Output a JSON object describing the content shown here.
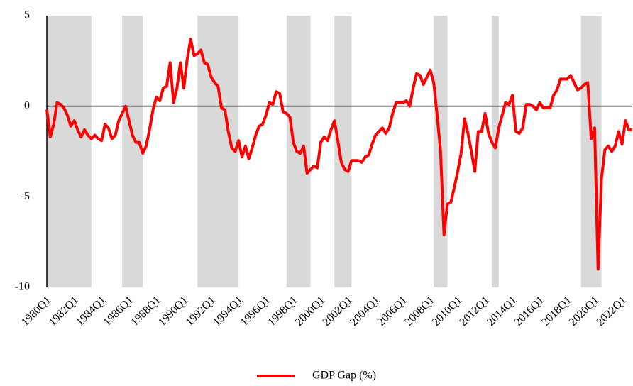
{
  "chart_data": {
    "type": "line",
    "x": [
      1980,
      1980.25,
      1980.5,
      1980.75,
      1981,
      1981.25,
      1981.5,
      1981.75,
      1982,
      1982.25,
      1982.5,
      1982.75,
      1983,
      1983.25,
      1983.5,
      1983.75,
      1984,
      1984.25,
      1984.5,
      1984.75,
      1985,
      1985.25,
      1985.5,
      1985.75,
      1986,
      1986.25,
      1986.5,
      1986.75,
      1987,
      1987.25,
      1987.5,
      1987.75,
      1988,
      1988.25,
      1988.5,
      1988.75,
      1989,
      1989.25,
      1989.5,
      1989.75,
      1990,
      1990.25,
      1990.5,
      1990.75,
      1991,
      1991.25,
      1991.5,
      1991.75,
      1992,
      1992.25,
      1992.5,
      1992.75,
      1993,
      1993.25,
      1993.5,
      1993.75,
      1994,
      1994.25,
      1994.5,
      1994.75,
      1995,
      1995.25,
      1995.5,
      1995.75,
      1996,
      1996.25,
      1996.5,
      1996.75,
      1997,
      1997.25,
      1997.5,
      1997.75,
      1998,
      1998.25,
      1998.5,
      1998.75,
      1999,
      1999.25,
      1999.5,
      1999.75,
      2000,
      2000.25,
      2000.5,
      2000.75,
      2001,
      2001.25,
      2001.5,
      2001.75,
      2002,
      2002.25,
      2002.5,
      2002.75,
      2003,
      2003.25,
      2003.5,
      2003.75,
      2004,
      2004.25,
      2004.5,
      2004.75,
      2005,
      2005.25,
      2005.5,
      2005.75,
      2006,
      2006.25,
      2006.5,
      2006.75,
      2007,
      2007.25,
      2007.5,
      2007.75,
      2008,
      2008.25,
      2008.5,
      2008.75,
      2009,
      2009.25,
      2009.5,
      2009.75,
      2010,
      2010.25,
      2010.5,
      2010.75,
      2011,
      2011.25,
      2011.5,
      2011.75,
      2012,
      2012.25,
      2012.5,
      2012.75,
      2013,
      2013.25,
      2013.5,
      2013.75,
      2014,
      2014.25,
      2014.5,
      2014.75,
      2015,
      2015.25,
      2015.5,
      2015.75,
      2016,
      2016.25,
      2016.5,
      2016.75,
      2017,
      2017.25,
      2017.5,
      2017.75,
      2018,
      2018.25,
      2018.5,
      2018.75,
      2019,
      2019.25,
      2019.5,
      2019.75,
      2020,
      2020.25,
      2020.5,
      2020.75,
      2021,
      2021.25,
      2021.5,
      2021.75,
      2022,
      2022.25,
      2022.5,
      2022.75
    ],
    "series": [
      {
        "name": "GDP Gap (%)",
        "color": "#ff0000",
        "values": [
          -0.2,
          -1.7,
          -1.0,
          0.2,
          0.1,
          -0.1,
          -0.5,
          -1.1,
          -0.8,
          -1.3,
          -1.7,
          -1.3,
          -1.6,
          -1.8,
          -1.6,
          -1.8,
          -1.9,
          -1.0,
          -1.2,
          -1.8,
          -1.6,
          -0.8,
          -0.4,
          0.0,
          -0.8,
          -1.6,
          -2.0,
          -2.0,
          -2.6,
          -2.2,
          -1.3,
          -0.2,
          0.5,
          0.3,
          1.0,
          1.1,
          2.4,
          0.2,
          1.0,
          2.4,
          1.0,
          2.6,
          3.7,
          2.8,
          2.9,
          3.1,
          2.4,
          2.3,
          1.6,
          1.3,
          1.1,
          -0.1,
          -0.2,
          -1.4,
          -2.3,
          -2.5,
          -1.9,
          -2.8,
          -2.2,
          -2.9,
          -2.3,
          -1.6,
          -1.1,
          -1.0,
          -0.5,
          0.2,
          0.1,
          0.8,
          0.7,
          -0.3,
          -0.4,
          -0.6,
          -2.0,
          -2.5,
          -2.6,
          -2.2,
          -3.7,
          -3.5,
          -3.3,
          -3.4,
          -2.0,
          -1.7,
          -1.9,
          -1.3,
          -0.8,
          -1.9,
          -3.1,
          -3.5,
          -3.6,
          -3.0,
          -3.0,
          -3.0,
          -3.1,
          -2.8,
          -2.7,
          -2.1,
          -1.6,
          -1.4,
          -1.2,
          -1.5,
          -1.2,
          -0.4,
          0.2,
          0.2,
          0.2,
          0.3,
          0.0,
          1.0,
          1.8,
          1.7,
          1.2,
          1.6,
          2.0,
          1.3,
          -0.5,
          -2.5,
          -7.1,
          -5.4,
          -5.3,
          -4.5,
          -3.6,
          -2.6,
          -0.7,
          -1.5,
          -2.5,
          -3.6,
          -1.4,
          -1.4,
          -0.4,
          -1.5,
          -2.0,
          -2.3,
          -1.2,
          -0.5,
          0.2,
          0.1,
          0.6,
          -1.4,
          -1.5,
          -1.2,
          0.1,
          0.1,
          0.0,
          -0.2,
          0.2,
          -0.1,
          -0.1,
          -0.1,
          0.6,
          0.9,
          1.5,
          1.5,
          1.5,
          1.7,
          1.3,
          0.9,
          1.0,
          1.2,
          1.3,
          -1.8,
          -1.2,
          -9.0,
          -4.0,
          -2.4,
          -2.2,
          -2.5,
          -2.2,
          -1.4,
          -2.1,
          -0.8,
          -1.3,
          -1.3
        ]
      }
    ],
    "shaded_periods": [
      [
        1980,
        1983.25
      ],
      [
        1985.5,
        1987
      ],
      [
        1991,
        1994
      ],
      [
        1997.5,
        1999.25
      ],
      [
        2001,
        2002.25
      ],
      [
        2008.25,
        2009.25
      ],
      [
        2012.5,
        2013
      ],
      [
        2019,
        2020.5
      ]
    ],
    "shade_color": "#d9d9d9",
    "xlim": [
      1980,
      2022.75
    ],
    "xticks": [
      {
        "value": 1980,
        "label": "1980Q1"
      },
      {
        "value": 1982,
        "label": "1982Q1"
      },
      {
        "value": 1984,
        "label": "1984Q1"
      },
      {
        "value": 1986,
        "label": "1986Q1"
      },
      {
        "value": 1988,
        "label": "1988Q1"
      },
      {
        "value": 1990,
        "label": "1990Q1"
      },
      {
        "value": 1992,
        "label": "1992Q1"
      },
      {
        "value": 1994,
        "label": "1994Q1"
      },
      {
        "value": 1996,
        "label": "1996Q1"
      },
      {
        "value": 1998,
        "label": "1998Q1"
      },
      {
        "value": 2000,
        "label": "2000Q1"
      },
      {
        "value": 2002,
        "label": "2002Q1"
      },
      {
        "value": 2004,
        "label": "2004Q1"
      },
      {
        "value": 2006,
        "label": "2006Q1"
      },
      {
        "value": 2008,
        "label": "2008Q1"
      },
      {
        "value": 2010,
        "label": "2010Q1"
      },
      {
        "value": 2012,
        "label": "2012Q1"
      },
      {
        "value": 2014,
        "label": "2014Q1"
      },
      {
        "value": 2016,
        "label": "2016Q1"
      },
      {
        "value": 2018,
        "label": "2018Q1"
      },
      {
        "value": 2020,
        "label": "2020Q1"
      },
      {
        "value": 2022,
        "label": "2022Q1"
      }
    ],
    "ylim": [
      -10,
      5
    ],
    "yticks": [
      -10,
      -5,
      0,
      5
    ],
    "grid": false,
    "legend": "bottom"
  }
}
